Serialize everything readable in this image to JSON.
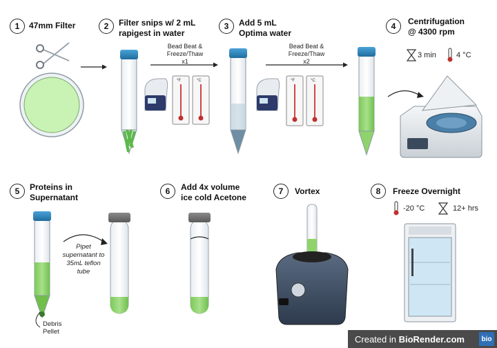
{
  "steps": [
    {
      "num": "1",
      "title_lines": [
        "47mm Filter"
      ]
    },
    {
      "num": "2",
      "title_lines": [
        "Filter snips w/ 2 mL",
        "rapigest in water"
      ]
    },
    {
      "num": "3",
      "title_lines": [
        "Add 5 mL",
        "Optima water"
      ]
    },
    {
      "num": "4",
      "title_lines": [
        "Centrifugation",
        "@ 4300 rpm"
      ]
    },
    {
      "num": "5",
      "title_lines": [
        "Proteins in",
        "Supernatant"
      ]
    },
    {
      "num": "6",
      "title_lines": [
        "Add 4x volume",
        "ice cold Acetone"
      ]
    },
    {
      "num": "7",
      "title_lines": [
        "Vortex"
      ]
    },
    {
      "num": "8",
      "title_lines": [
        "Freeze Overnight"
      ]
    }
  ],
  "arrow_labels": {
    "a1": [
      "Bead Beat &",
      "Freeze/Thaw",
      "x1"
    ],
    "a2": [
      "Bead Beat &",
      "Freeze/Thaw",
      "x2"
    ]
  },
  "centrifuge_settings": {
    "time": "3 min",
    "temp": "4 °C"
  },
  "freeze_settings": {
    "temp": "-20 °C",
    "time": "12+ hrs"
  },
  "pipet_note": [
    "Pipet",
    "supernatant to",
    "35mL teflon",
    "tube"
  ],
  "debris_label": [
    "Debris",
    "Pellet"
  ],
  "thermometer_unit_left": "°F",
  "thermometer_unit_right": "°C",
  "footer": {
    "prefix": "Created in ",
    "brand": "BioRender.com",
    "logo": "bio"
  },
  "colors": {
    "cap_blue": "#2c7fb8",
    "liquid_green": "#8fd36c",
    "filter_green": "#c9f2b5",
    "slate": "#4a5a6a"
  },
  "icons": [
    "scissors-icon",
    "hourglass-icon",
    "thermometer-icon"
  ]
}
